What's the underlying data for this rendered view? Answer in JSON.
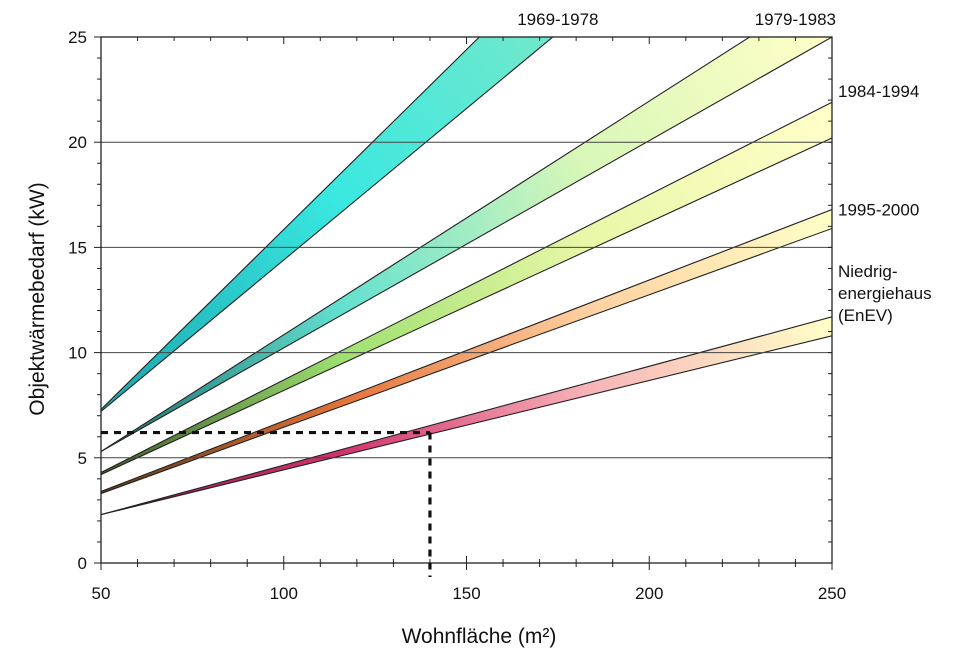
{
  "chart_data": {
    "type": "area",
    "xlabel": "Wohnfläche (m²)",
    "ylabel": "Objektwärmebedarf (kW)",
    "xlim": [
      50,
      250
    ],
    "ylim": [
      0,
      25
    ],
    "x_ticks": [
      "50",
      "100",
      "150",
      "200",
      "250"
    ],
    "y_ticks": [
      "0",
      "5",
      "10",
      "15",
      "20",
      "25"
    ],
    "grid": "horizontal",
    "bands": [
      {
        "name": "Niedrig-\nenergiehaus\n(EnEV)",
        "label_lines": [
          "Niedrig-",
          "energiehaus",
          "(EnEV)"
        ],
        "x": [
          50,
          250
        ],
        "upper": [
          2.3,
          11.7
        ],
        "lower": [
          2.3,
          10.8
        ],
        "colors": [
          "#8b1a5a",
          "#d2336e",
          "#f7b3b8",
          "#ffffc8"
        ]
      },
      {
        "name": "1995-2000",
        "label_lines": [
          "1995-2000"
        ],
        "x": [
          50,
          250
        ],
        "upper": [
          3.4,
          16.8
        ],
        "lower": [
          3.3,
          15.9
        ],
        "colors": [
          "#5c3a1a",
          "#e5733a",
          "#ffd0a0",
          "#ffffc8"
        ]
      },
      {
        "name": "1984-1994",
        "label_lines": [
          "1984-1994"
        ],
        "x": [
          50,
          250
        ],
        "upper": [
          4.3,
          21.9
        ],
        "lower": [
          4.2,
          20.2
        ],
        "colors": [
          "#3d5a2a",
          "#9ee070",
          "#e8f7a8",
          "#ffffc8"
        ]
      },
      {
        "name": "1979-1983",
        "label_lines": [
          "1979-1983"
        ],
        "x": [
          50,
          250
        ],
        "upper": [
          5.3,
          27.5
        ],
        "lower": [
          5.3,
          25.0
        ],
        "colors": [
          "#1a6a6a",
          "#63e0d0",
          "#d8f7b8",
          "#ffffc8"
        ]
      },
      {
        "name": "1969-1978",
        "label_lines": [
          "1969-1978"
        ],
        "x": [
          50,
          250
        ],
        "upper": [
          7.3,
          41.5
        ],
        "lower": [
          7.2,
          36.0
        ],
        "colors": [
          "#1aa5b0",
          "#3ae8e0",
          "#7be8c8",
          "#b0f0c0"
        ]
      }
    ],
    "reference": {
      "x": 140,
      "y": 6.2
    }
  }
}
